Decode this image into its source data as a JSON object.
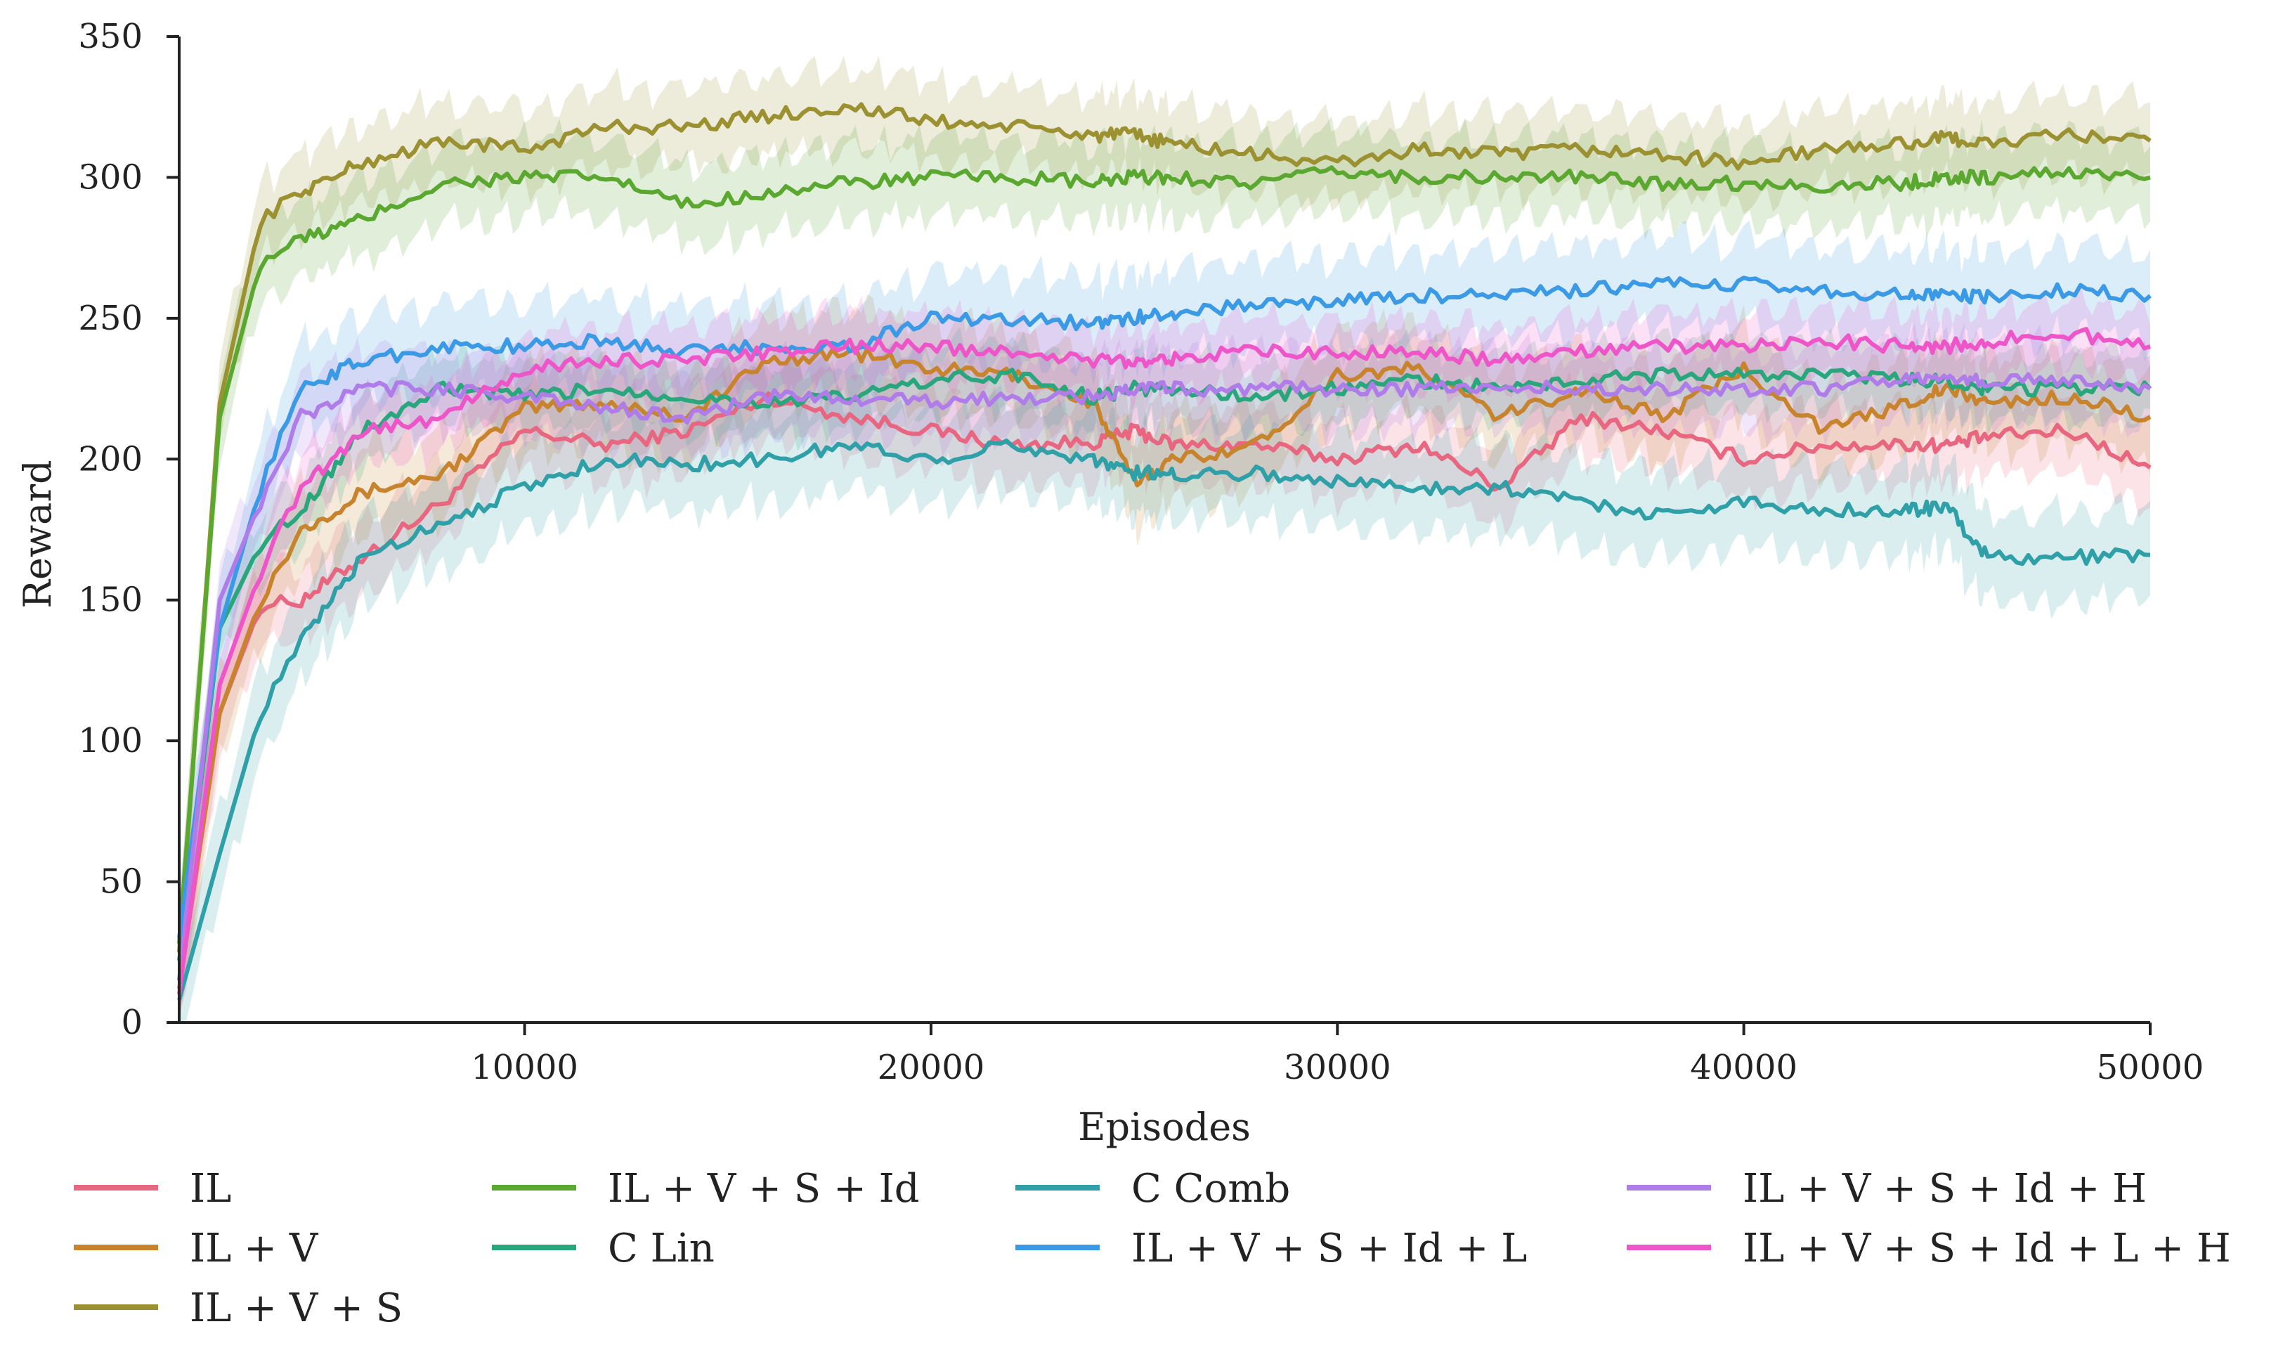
{
  "chart_data": {
    "type": "line",
    "title": "",
    "xlabel": "Episodes",
    "ylabel": "Reward",
    "xlim": [
      1500,
      50000
    ],
    "ylim": [
      0,
      350
    ],
    "xticks": [
      10000,
      20000,
      30000,
      40000,
      50000
    ],
    "yticks": [
      0,
      50,
      100,
      150,
      200,
      250,
      300,
      350
    ],
    "grid": false,
    "legend_position": "below",
    "x": [
      1500,
      2500,
      3500,
      4500,
      6000,
      8000,
      10000,
      12000,
      14000,
      16000,
      18000,
      20000,
      22000,
      24000,
      25000,
      26000,
      28000,
      30000,
      32000,
      34000,
      36000,
      38000,
      40000,
      42000,
      44000,
      45000,
      46000,
      48000,
      50000
    ],
    "series": [
      {
        "name": "IL",
        "color": "#e8667f",
        "values": [
          12,
          110,
          148,
          150,
          165,
          185,
          210,
          205,
          210,
          222,
          215,
          210,
          205,
          206,
          210,
          205,
          205,
          200,
          205,
          190,
          215,
          210,
          200,
          205,
          205,
          205,
          208,
          210,
          197
        ],
        "band": 14
      },
      {
        "name": "IL + V",
        "color": "#c8842c",
        "values": [
          15,
          110,
          150,
          175,
          188,
          195,
          218,
          220,
          215,
          235,
          238,
          232,
          230,
          220,
          192,
          200,
          205,
          230,
          232,
          215,
          225,
          215,
          232,
          210,
          220,
          225,
          220,
          222,
          215
        ],
        "band": 16
      },
      {
        "name": "IL + V + S",
        "color": "#9c9131",
        "values": [
          25,
          220,
          285,
          295,
          305,
          313,
          310,
          318,
          318,
          322,
          325,
          320,
          318,
          315,
          315,
          312,
          308,
          305,
          310,
          308,
          310,
          308,
          305,
          310,
          312,
          314,
          312,
          315,
          313
        ],
        "band": 14
      },
      {
        "name": "IL + V + S + Id",
        "color": "#5aa830",
        "values": [
          28,
          215,
          270,
          278,
          285,
          298,
          300,
          300,
          290,
          295,
          298,
          300,
          300,
          298,
          300,
          300,
          298,
          302,
          300,
          300,
          300,
          298,
          298,
          297,
          298,
          300,
          300,
          302,
          300
        ],
        "band": 14
      },
      {
        "name": "C Lin",
        "color": "#2aa67c",
        "values": [
          22,
          140,
          170,
          182,
          210,
          225,
          222,
          225,
          222,
          220,
          222,
          228,
          230,
          222,
          225,
          225,
          222,
          225,
          228,
          225,
          228,
          230,
          230,
          230,
          228,
          228,
          225,
          225,
          225
        ],
        "band": 12
      },
      {
        "name": "C Comb",
        "color": "#30a0a8",
        "values": [
          8,
          60,
          110,
          135,
          165,
          178,
          190,
          200,
          198,
          200,
          205,
          200,
          205,
          200,
          195,
          195,
          195,
          192,
          190,
          190,
          185,
          180,
          185,
          182,
          182,
          183,
          165,
          165,
          166
        ],
        "band": 16
      },
      {
        "name": "IL + V + S + Id + L",
        "color": "#3b9ae6",
        "values": [
          30,
          140,
          190,
          225,
          235,
          240,
          240,
          242,
          238,
          240,
          240,
          250,
          250,
          248,
          250,
          252,
          255,
          256,
          258,
          258,
          260,
          262,
          262,
          260,
          258,
          258,
          258,
          260,
          258
        ],
        "band": 16
      },
      {
        "name": "IL + V + S + Id + H",
        "color": "#b07cea",
        "values": [
          15,
          150,
          185,
          215,
          225,
          225,
          222,
          218,
          215,
          222,
          222,
          220,
          222,
          222,
          225,
          225,
          225,
          225,
          225,
          225,
          225,
          225,
          225,
          225,
          228,
          228,
          228,
          228,
          225
        ],
        "band": 14
      },
      {
        "name": "IL + V + S + Id + L + H",
        "color": "#ee55c8",
        "values": [
          10,
          120,
          160,
          190,
          210,
          215,
          232,
          235,
          235,
          238,
          240,
          240,
          238,
          235,
          235,
          236,
          238,
          238,
          238,
          235,
          238,
          240,
          240,
          242,
          240,
          240,
          242,
          245,
          240
        ],
        "band": 12
      }
    ]
  }
}
